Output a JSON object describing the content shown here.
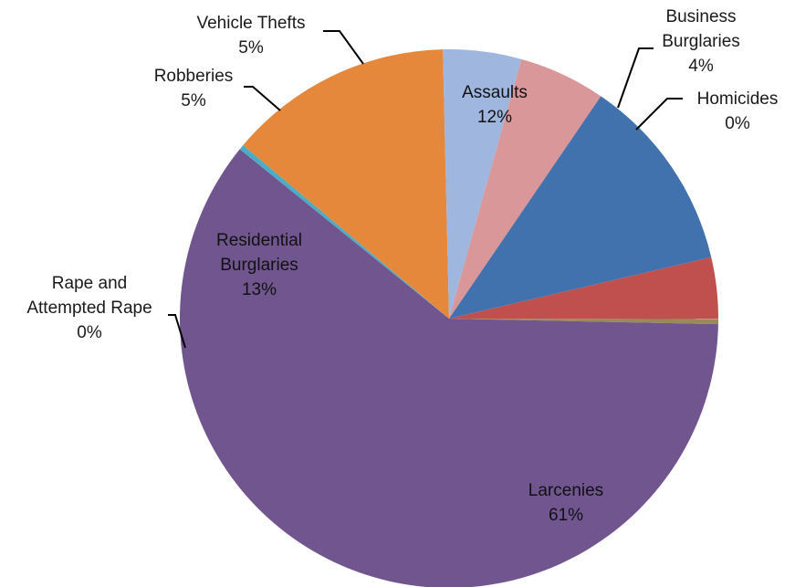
{
  "chart_data": {
    "type": "pie",
    "title": "",
    "slices": [
      {
        "label": [
          "Business",
          "Burglaries"
        ],
        "percent_label": "4%",
        "value": 3.7,
        "color": "#c0504d"
      },
      {
        "label": [
          "Homicides"
        ],
        "percent_label": "0%",
        "value": 0.3,
        "color": "#9a8a5a"
      },
      {
        "label": [
          "Larcenies"
        ],
        "percent_label": "61%",
        "value": 60.5,
        "color": "#70558f"
      },
      {
        "label": [
          "Rape and",
          "Attempted Rape"
        ],
        "percent_label": "0%",
        "value": 0.3,
        "color": "#4bacc6"
      },
      {
        "label": [
          "Residential",
          "Burglaries"
        ],
        "percent_label": "13%",
        "value": 13.5,
        "color": "#e6883c"
      },
      {
        "label": [
          "Robberies"
        ],
        "percent_label": "5%",
        "value": 4.7,
        "color": "#9fb6df"
      },
      {
        "label": [
          "Vehicle Thefts"
        ],
        "percent_label": "5%",
        "value": 5.2,
        "color": "#d9979a"
      },
      {
        "label": [
          "Assaults"
        ],
        "percent_label": "12%",
        "value": 11.8,
        "color": "#4272ad"
      }
    ]
  }
}
